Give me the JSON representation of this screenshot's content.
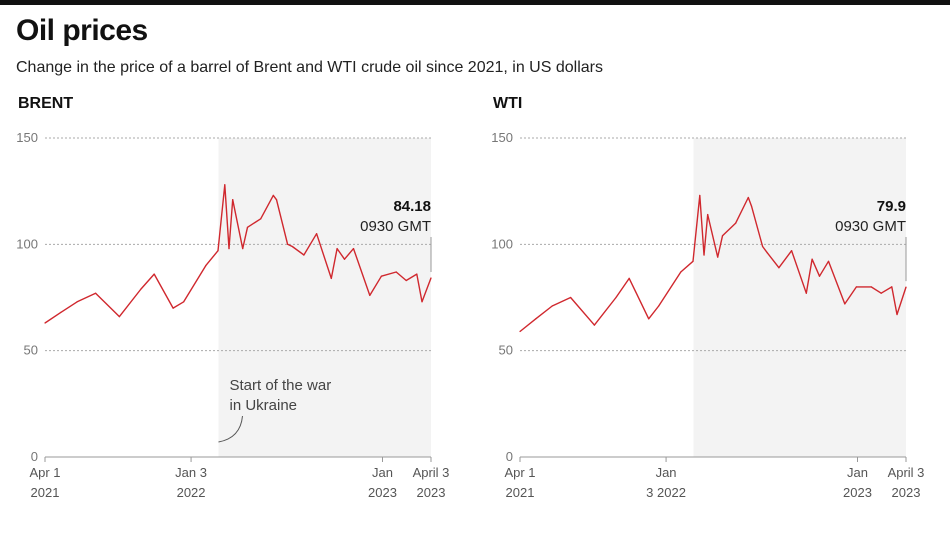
{
  "title": "Oil prices",
  "subtitle": "Change in the price of a barrel of Brent and WTI crude oil since 2021, in US dollars",
  "chart_data": [
    {
      "type": "line",
      "title": "BRENT",
      "color": "#d0282e",
      "shade_color": "#f3f3f3",
      "xlim": [
        "2021-04-01",
        "2023-04-03"
      ],
      "ylim": [
        0,
        150
      ],
      "yticks": [
        "0",
        "50",
        "100",
        "150"
      ],
      "grid": true,
      "xticks": [
        {
          "date": "2021-04-01",
          "line1": "Apr 1",
          "line2": "2021"
        },
        {
          "date": "2022-01-03",
          "line1": "Jan 3",
          "line2": "2022"
        },
        {
          "date": "2023-01-01",
          "line1": "Jan",
          "line2": "2023"
        },
        {
          "date": "2023-04-03",
          "line1": "April 3",
          "line2": "2023"
        }
      ],
      "shaded_from": "2022-02-24",
      "annotation": {
        "line1": "Start of the war",
        "line2": "in Ukraine"
      },
      "last_value": "84.18",
      "last_label": "0930 GMT",
      "x": [
        "2021-04-01",
        "2021-05-01",
        "2021-06-01",
        "2021-07-06",
        "2021-08-20",
        "2021-09-30",
        "2021-10-25",
        "2021-11-30",
        "2021-12-20",
        "2022-01-31",
        "2022-02-23",
        "2022-03-08",
        "2022-03-16",
        "2022-03-23",
        "2022-04-11",
        "2022-04-20",
        "2022-05-15",
        "2022-06-08",
        "2022-06-14",
        "2022-07-05",
        "2022-07-14",
        "2022-08-05",
        "2022-08-29",
        "2022-09-26",
        "2022-10-07",
        "2022-10-21",
        "2022-11-07",
        "2022-12-08",
        "2022-12-30",
        "2023-01-27",
        "2023-02-15",
        "2023-03-07",
        "2023-03-17",
        "2023-04-03"
      ],
      "values": [
        63,
        68,
        73,
        77,
        66,
        79,
        86,
        70,
        73,
        90,
        97,
        128,
        98,
        121,
        98,
        108,
        112,
        123,
        121,
        100,
        99,
        95,
        105,
        84,
        98,
        93,
        98,
        76,
        85,
        87,
        83,
        86,
        73,
        84.18
      ]
    },
    {
      "type": "line",
      "title": "WTI",
      "color": "#d0282e",
      "shade_color": "#f3f3f3",
      "xlim": [
        "2021-04-01",
        "2023-04-03"
      ],
      "ylim": [
        0,
        150
      ],
      "yticks": [
        "0",
        "50",
        "100",
        "150"
      ],
      "grid": true,
      "xticks": [
        {
          "date": "2021-04-01",
          "line1": "Apr 1",
          "line2": "2021"
        },
        {
          "date": "2022-01-03",
          "line1": "Jan",
          "line2": "3 2022"
        },
        {
          "date": "2023-01-01",
          "line1": "Jan",
          "line2": "2023"
        },
        {
          "date": "2023-04-03",
          "line1": "April 3",
          "line2": "2023"
        }
      ],
      "shaded_from": "2022-02-24",
      "last_value": "79.9",
      "last_label": "0930 GMT",
      "x": [
        "2021-04-01",
        "2021-05-01",
        "2021-06-01",
        "2021-07-06",
        "2021-08-20",
        "2021-09-30",
        "2021-10-25",
        "2021-12-01",
        "2021-12-20",
        "2022-01-31",
        "2022-02-23",
        "2022-03-08",
        "2022-03-16",
        "2022-03-23",
        "2022-04-11",
        "2022-04-20",
        "2022-05-15",
        "2022-06-08",
        "2022-06-14",
        "2022-07-05",
        "2022-07-14",
        "2022-08-05",
        "2022-08-29",
        "2022-09-26",
        "2022-10-07",
        "2022-10-21",
        "2022-11-07",
        "2022-12-08",
        "2022-12-30",
        "2023-01-27",
        "2023-02-15",
        "2023-03-07",
        "2023-03-17",
        "2023-04-03"
      ],
      "values": [
        59,
        65,
        71,
        75,
        62,
        75,
        84,
        65,
        71,
        87,
        92,
        123,
        95,
        114,
        94,
        104,
        110,
        122,
        118,
        99,
        96,
        89,
        97,
        77,
        93,
        85,
        92,
        72,
        80,
        80,
        77,
        80,
        67,
        79.9
      ]
    }
  ]
}
